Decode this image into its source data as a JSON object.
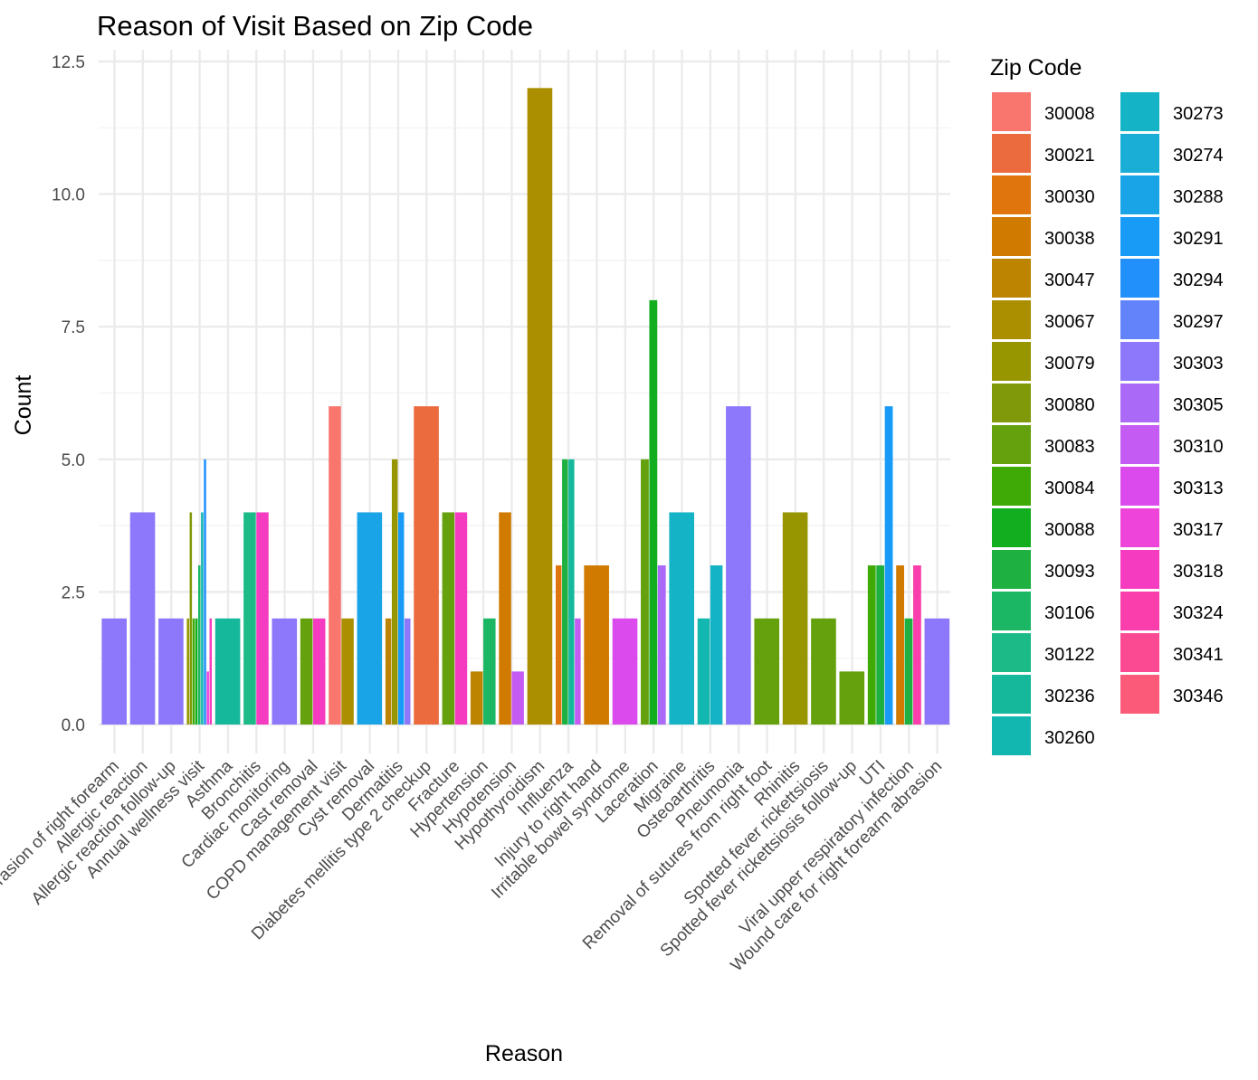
{
  "chart_data": {
    "type": "bar",
    "title": "Reason of Visit Based on Zip Code",
    "xlabel": "Reason",
    "ylabel": "Count",
    "ylim": [
      0,
      12.5
    ],
    "yticks": [
      "0.0",
      "2.5",
      "5.0",
      "7.5",
      "10.0",
      "12.5"
    ],
    "ytick_values": [
      0,
      2.5,
      5,
      7.5,
      10,
      12.5
    ],
    "grid": true,
    "legend": {
      "title": "Zip Code",
      "position": "right",
      "columns": 2,
      "entries": [
        {
          "zip": "30008",
          "color": "#F8766D"
        },
        {
          "zip": "30021",
          "color": "#EC6B3E"
        },
        {
          "zip": "30030",
          "color": "#E0750E"
        },
        {
          "zip": "30038",
          "color": "#D07A00"
        },
        {
          "zip": "30047",
          "color": "#BC8400"
        },
        {
          "zip": "30067",
          "color": "#AC8F00"
        },
        {
          "zip": "30079",
          "color": "#979500"
        },
        {
          "zip": "30080",
          "color": "#80990A"
        },
        {
          "zip": "30083",
          "color": "#64A10D"
        },
        {
          "zip": "30084",
          "color": "#3FA905"
        },
        {
          "zip": "30088",
          "color": "#12AE1F"
        },
        {
          "zip": "30093",
          "color": "#1EB040"
        },
        {
          "zip": "30106",
          "color": "#1CB765"
        },
        {
          "zip": "30122",
          "color": "#1BBA86"
        },
        {
          "zip": "30236",
          "color": "#16B89C"
        },
        {
          "zip": "30260",
          "color": "#12B7B0"
        },
        {
          "zip": "30273",
          "color": "#14B3C5"
        },
        {
          "zip": "30274",
          "color": "#1AAED6"
        },
        {
          "zip": "30288",
          "color": "#18A4E6"
        },
        {
          "zip": "30291",
          "color": "#179BF6"
        },
        {
          "zip": "30294",
          "color": "#2190FB"
        },
        {
          "zip": "30297",
          "color": "#6383FB"
        },
        {
          "zip": "30303",
          "color": "#8D77FA"
        },
        {
          "zip": "30305",
          "color": "#AA69F6"
        },
        {
          "zip": "30310",
          "color": "#C45BF3"
        },
        {
          "zip": "30313",
          "color": "#DB4AED"
        },
        {
          "zip": "30317",
          "color": "#EF44DA"
        },
        {
          "zip": "30318",
          "color": "#F53CC1"
        },
        {
          "zip": "30324",
          "color": "#FA3FAC"
        },
        {
          "zip": "30341",
          "color": "#FC4A92"
        },
        {
          "zip": "30346",
          "color": "#FC5A79"
        }
      ]
    },
    "categories": [
      "Abrasion of right forearm",
      "Allergic reaction",
      "Allergic reaction follow-up",
      "Annual wellness visit",
      "Asthma",
      "Bronchitis",
      "Cardiac monitoring",
      "Cast removal",
      "COPD management visit",
      "Cyst removal",
      "Dermatitis",
      "Diabetes mellitis type 2 checkup",
      "Fracture",
      "Hypertension",
      "Hypotension",
      "Hypothyroidism",
      "Influenza",
      "Injury to right hand",
      "Irritable bowel syndrome",
      "Laceration",
      "Migraine",
      "Osteoarthritis",
      "Pneumonia",
      "Removal of sutures from right foot",
      "Rhinitis",
      "Spotted fever rickettsiosis",
      "Spotted fever rickettsiosis follow-up",
      "UTI",
      "Viral upper respiratory infection",
      "Wound care for right forearm abrasion"
    ],
    "bars": [
      {
        "category": "Abrasion of right forearm",
        "segments": [
          {
            "zip": "30303",
            "value": 2
          }
        ]
      },
      {
        "category": "Allergic reaction",
        "segments": [
          {
            "zip": "30303",
            "value": 4
          }
        ]
      },
      {
        "category": "Allergic reaction follow-up",
        "segments": [
          {
            "zip": "30303",
            "value": 2
          }
        ]
      },
      {
        "category": "Annual wellness visit",
        "segments": [
          {
            "zip": "30079",
            "value": 2
          },
          {
            "zip": "30080",
            "value": 4
          },
          {
            "zip": "30084",
            "value": 2
          },
          {
            "zip": "30088",
            "value": 2
          },
          {
            "zip": "30106",
            "value": 3
          },
          {
            "zip": "30260",
            "value": 4
          },
          {
            "zip": "30294",
            "value": 5
          },
          {
            "zip": "30317",
            "value": 1
          },
          {
            "zip": "30318",
            "value": 2
          }
        ]
      },
      {
        "category": "Asthma",
        "segments": [
          {
            "zip": "30236",
            "value": 2
          }
        ]
      },
      {
        "category": "Bronchitis",
        "segments": [
          {
            "zip": "30122",
            "value": 4
          },
          {
            "zip": "30318",
            "value": 4
          }
        ]
      },
      {
        "category": "Cardiac monitoring",
        "segments": [
          {
            "zip": "30303",
            "value": 2
          }
        ]
      },
      {
        "category": "Cast removal",
        "segments": [
          {
            "zip": "30083",
            "value": 2
          },
          {
            "zip": "30318",
            "value": 2
          }
        ]
      },
      {
        "category": "COPD management visit",
        "segments": [
          {
            "zip": "30008",
            "value": 6
          },
          {
            "zip": "30067",
            "value": 2
          }
        ]
      },
      {
        "category": "Cyst removal",
        "segments": [
          {
            "zip": "30288",
            "value": 4
          }
        ]
      },
      {
        "category": "Dermatitis",
        "segments": [
          {
            "zip": "30047",
            "value": 2
          },
          {
            "zip": "30079",
            "value": 5
          },
          {
            "zip": "30291",
            "value": 4
          },
          {
            "zip": "30303",
            "value": 2
          }
        ]
      },
      {
        "category": "Diabetes mellitis type 2 checkup",
        "segments": [
          {
            "zip": "30021",
            "value": 6
          }
        ]
      },
      {
        "category": "Fracture",
        "segments": [
          {
            "zip": "30083",
            "value": 4
          },
          {
            "zip": "30318",
            "value": 4
          }
        ]
      },
      {
        "category": "Hypertension",
        "segments": [
          {
            "zip": "30047",
            "value": 1
          },
          {
            "zip": "30106",
            "value": 2
          }
        ]
      },
      {
        "category": "Hypotension",
        "segments": [
          {
            "zip": "30038",
            "value": 4
          },
          {
            "zip": "30310",
            "value": 1
          }
        ]
      },
      {
        "category": "Hypothyroidism",
        "segments": [
          {
            "zip": "30067",
            "value": 12
          }
        ]
      },
      {
        "category": "Influenza",
        "segments": [
          {
            "zip": "30030",
            "value": 3
          },
          {
            "zip": "30093",
            "value": 5
          },
          {
            "zip": "30236",
            "value": 5
          },
          {
            "zip": "30310",
            "value": 2
          }
        ]
      },
      {
        "category": "Injury to right hand",
        "segments": [
          {
            "zip": "30038",
            "value": 3
          }
        ]
      },
      {
        "category": "Irritable bowel syndrome",
        "segments": [
          {
            "zip": "30313",
            "value": 2
          }
        ]
      },
      {
        "category": "Laceration",
        "segments": [
          {
            "zip": "30083",
            "value": 5
          },
          {
            "zip": "30088",
            "value": 8
          },
          {
            "zip": "30305",
            "value": 3
          }
        ]
      },
      {
        "category": "Migraine",
        "segments": [
          {
            "zip": "30273",
            "value": 4
          }
        ]
      },
      {
        "category": "Osteoarthritis",
        "segments": [
          {
            "zip": "30260",
            "value": 2
          },
          {
            "zip": "30273",
            "value": 3
          }
        ]
      },
      {
        "category": "Pneumonia",
        "segments": [
          {
            "zip": "30303",
            "value": 6
          }
        ]
      },
      {
        "category": "Removal of sutures from right foot",
        "segments": [
          {
            "zip": "30083",
            "value": 2
          }
        ]
      },
      {
        "category": "Rhinitis",
        "segments": [
          {
            "zip": "30079",
            "value": 4
          }
        ]
      },
      {
        "category": "Spotted fever rickettsiosis",
        "segments": [
          {
            "zip": "30083",
            "value": 2
          }
        ]
      },
      {
        "category": "Spotted fever rickettsiosis follow-up",
        "segments": [
          {
            "zip": "30083",
            "value": 1
          }
        ]
      },
      {
        "category": "UTI",
        "segments": [
          {
            "zip": "30084",
            "value": 3
          },
          {
            "zip": "30093",
            "value": 3
          },
          {
            "zip": "30291",
            "value": 6
          }
        ]
      },
      {
        "category": "Viral upper respiratory infection",
        "segments": [
          {
            "zip": "30038",
            "value": 3
          },
          {
            "zip": "30093",
            "value": 2
          },
          {
            "zip": "30324",
            "value": 3
          }
        ]
      },
      {
        "category": "Wound care for right forearm abrasion",
        "segments": [
          {
            "zip": "30303",
            "value": 2
          }
        ]
      }
    ]
  }
}
